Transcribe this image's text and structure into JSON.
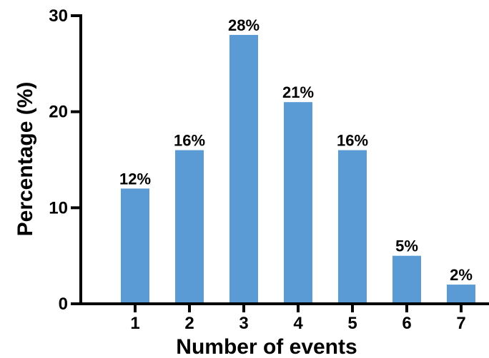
{
  "chart_data": {
    "type": "bar",
    "categories": [
      "1",
      "2",
      "3",
      "4",
      "5",
      "6",
      "7"
    ],
    "values": [
      12,
      16,
      28,
      21,
      16,
      5,
      2
    ],
    "data_labels": [
      "12%",
      "16%",
      "28%",
      "21%",
      "16%",
      "5%",
      "2%"
    ],
    "title": "",
    "xlabel": "Number of events",
    "ylabel": "Percentage (%)",
    "ylim": [
      0,
      30
    ],
    "yticks": [
      0,
      10,
      20,
      30
    ],
    "grid": false,
    "colors": {
      "bar": "#5b9bd5",
      "axis": "#000000"
    }
  }
}
